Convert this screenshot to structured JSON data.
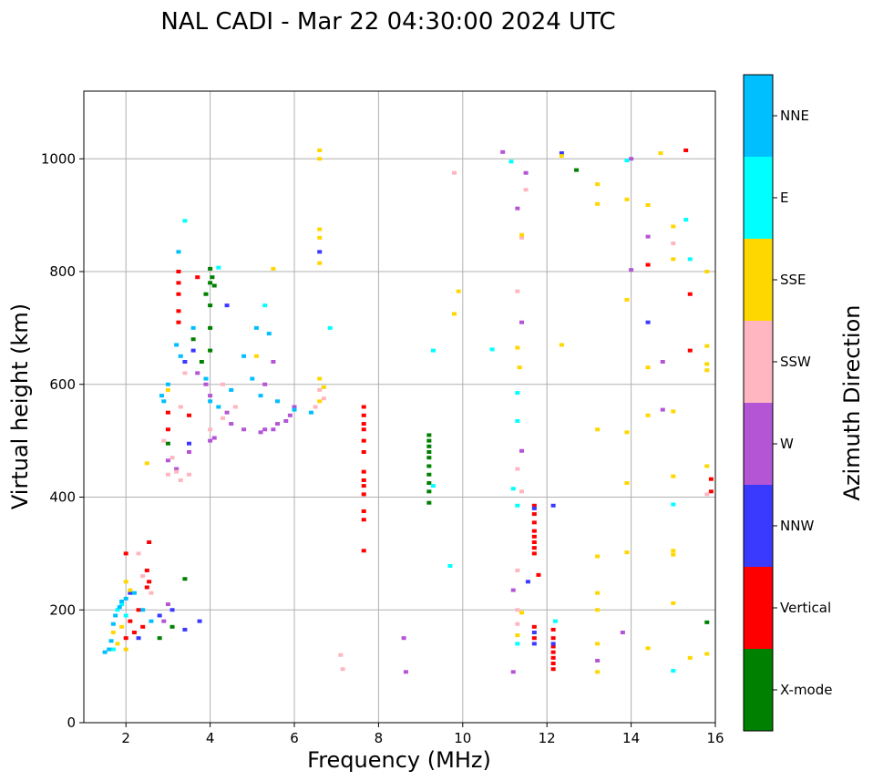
{
  "chart_data": {
    "type": "scatter",
    "title": "NAL CADI - Mar 22 04:30:00 2024 UTC",
    "xlabel": "Frequency (MHz)",
    "ylabel": "Virtual height (km)",
    "xlim": [
      1,
      16
    ],
    "ylim": [
      0,
      1120
    ],
    "x_ticks": [
      2,
      4,
      6,
      8,
      10,
      12,
      14,
      16
    ],
    "y_ticks": [
      0,
      200,
      400,
      600,
      800,
      1000
    ],
    "grid": true,
    "colorbar": {
      "label": "Azimuth Direction",
      "categories": [
        {
          "name": "X-mode",
          "color": "#008000"
        },
        {
          "name": "Vertical",
          "color": "#ff0000"
        },
        {
          "name": "NNW",
          "color": "#3a3aff"
        },
        {
          "name": "W",
          "color": "#b455d6"
        },
        {
          "name": "SSW",
          "color": "#ffb6c1"
        },
        {
          "name": "SSE",
          "color": "#ffd700"
        },
        {
          "name": "E",
          "color": "#00ffff"
        },
        {
          "name": "NNE",
          "color": "#00bfff"
        }
      ]
    },
    "series": [
      {
        "name": "X-mode",
        "color": "#008000",
        "points": [
          [
            9.2,
            390
          ],
          [
            9.2,
            410
          ],
          [
            9.2,
            425
          ],
          [
            9.2,
            440
          ],
          [
            9.2,
            455
          ],
          [
            9.2,
            470
          ],
          [
            9.2,
            480
          ],
          [
            9.2,
            490
          ],
          [
            9.2,
            500
          ],
          [
            9.2,
            510
          ],
          [
            4.0,
            805
          ],
          [
            4.05,
            790
          ],
          [
            4.0,
            780
          ],
          [
            4.1,
            775
          ],
          [
            3.9,
            760
          ],
          [
            4.0,
            740
          ],
          [
            4.0,
            700
          ],
          [
            3.6,
            680
          ],
          [
            4.0,
            660
          ],
          [
            3.8,
            640
          ],
          [
            3.4,
            255
          ],
          [
            2.8,
            150
          ],
          [
            3.1,
            170
          ],
          [
            12.7,
            980
          ],
          [
            15.8,
            178
          ],
          [
            3.0,
            495
          ]
        ]
      },
      {
        "name": "Vertical",
        "color": "#ff0000",
        "points": [
          [
            7.65,
            305
          ],
          [
            7.65,
            360
          ],
          [
            7.65,
            375
          ],
          [
            7.65,
            405
          ],
          [
            7.65,
            420
          ],
          [
            7.65,
            430
          ],
          [
            7.65,
            445
          ],
          [
            7.65,
            480
          ],
          [
            7.65,
            500
          ],
          [
            7.65,
            520
          ],
          [
            7.65,
            530
          ],
          [
            7.65,
            545
          ],
          [
            7.65,
            560
          ],
          [
            11.7,
            300
          ],
          [
            11.7,
            310
          ],
          [
            11.7,
            320
          ],
          [
            11.7,
            330
          ],
          [
            11.7,
            340
          ],
          [
            11.7,
            355
          ],
          [
            11.7,
            370
          ],
          [
            11.7,
            385
          ],
          [
            12.15,
            95
          ],
          [
            12.15,
            105
          ],
          [
            12.15,
            115
          ],
          [
            12.15,
            125
          ],
          [
            12.15,
            135
          ],
          [
            12.15,
            150
          ],
          [
            12.15,
            165
          ],
          [
            11.7,
            150
          ],
          [
            11.7,
            170
          ],
          [
            15.3,
            1015
          ],
          [
            15.4,
            760
          ],
          [
            14.4,
            812
          ],
          [
            15.4,
            660
          ],
          [
            15.9,
            410
          ],
          [
            15.9,
            432
          ],
          [
            11.8,
            262
          ],
          [
            3.25,
            800
          ],
          [
            3.25,
            780
          ],
          [
            3.25,
            760
          ],
          [
            3.25,
            730
          ],
          [
            3.25,
            710
          ],
          [
            3.7,
            790
          ],
          [
            3.0,
            520
          ],
          [
            3.0,
            550
          ],
          [
            3.5,
            545
          ],
          [
            2.0,
            150
          ],
          [
            2.2,
            160
          ],
          [
            2.4,
            170
          ],
          [
            2.1,
            180
          ],
          [
            2.3,
            200
          ],
          [
            2.5,
            240
          ],
          [
            2.55,
            250
          ],
          [
            2.5,
            270
          ],
          [
            2.55,
            320
          ],
          [
            2.0,
            300
          ]
        ]
      },
      {
        "name": "NNW",
        "color": "#3a3aff",
        "points": [
          [
            11.7,
            380
          ],
          [
            11.55,
            250
          ],
          [
            12.15,
            385
          ],
          [
            12.35,
            1010
          ],
          [
            14.4,
            710
          ],
          [
            6.6,
            835
          ],
          [
            4.4,
            740
          ],
          [
            11.7,
            160
          ],
          [
            11.7,
            140
          ],
          [
            12.15,
            140
          ],
          [
            3.1,
            200
          ],
          [
            3.4,
            165
          ],
          [
            3.75,
            180
          ],
          [
            2.8,
            190
          ],
          [
            3.5,
            495
          ],
          [
            3.6,
            660
          ],
          [
            3.4,
            640
          ],
          [
            2.1,
            230
          ],
          [
            2.3,
            150
          ]
        ]
      },
      {
        "name": "W",
        "color": "#b455d6",
        "points": [
          [
            5.5,
            520
          ],
          [
            5.6,
            530
          ],
          [
            5.8,
            535
          ],
          [
            5.9,
            545
          ],
          [
            6.0,
            560
          ],
          [
            5.3,
            520
          ],
          [
            5.2,
            515
          ],
          [
            4.8,
            520
          ],
          [
            4.5,
            530
          ],
          [
            4.4,
            550
          ],
          [
            4.0,
            500
          ],
          [
            4.1,
            505
          ],
          [
            4.0,
            580
          ],
          [
            3.9,
            600
          ],
          [
            3.7,
            620
          ],
          [
            3.5,
            480
          ],
          [
            3.2,
            450
          ],
          [
            3.0,
            465
          ],
          [
            11.4,
            482
          ],
          [
            11.4,
            710
          ],
          [
            11.3,
            912
          ],
          [
            11.5,
            975
          ],
          [
            10.95,
            1012
          ],
          [
            14.0,
            803
          ],
          [
            14.0,
            1000
          ],
          [
            14.4,
            862
          ],
          [
            14.75,
            640
          ],
          [
            14.75,
            555
          ],
          [
            11.2,
            235
          ],
          [
            13.8,
            160
          ],
          [
            13.2,
            110
          ],
          [
            3.0,
            210
          ],
          [
            2.9,
            180
          ],
          [
            8.6,
            150
          ],
          [
            8.65,
            90
          ],
          [
            11.2,
            90
          ],
          [
            5.3,
            600
          ],
          [
            5.5,
            640
          ]
        ]
      },
      {
        "name": "SSW",
        "color": "#ffb6c1",
        "points": [
          [
            3.0,
            440
          ],
          [
            3.2,
            445
          ],
          [
            3.3,
            430
          ],
          [
            3.5,
            440
          ],
          [
            3.1,
            470
          ],
          [
            2.9,
            500
          ],
          [
            4.0,
            520
          ],
          [
            4.3,
            540
          ],
          [
            4.6,
            560
          ],
          [
            4.3,
            600
          ],
          [
            6.6,
            590
          ],
          [
            6.7,
            575
          ],
          [
            6.5,
            560
          ],
          [
            11.3,
            765
          ],
          [
            11.5,
            945
          ],
          [
            11.4,
            860
          ],
          [
            11.3,
            450
          ],
          [
            11.4,
            410
          ],
          [
            11.3,
            270
          ],
          [
            11.3,
            200
          ],
          [
            11.3,
            175
          ],
          [
            15.8,
            405
          ],
          [
            15.0,
            850
          ],
          [
            2.4,
            260
          ],
          [
            2.6,
            230
          ],
          [
            2.3,
            300
          ],
          [
            7.1,
            120
          ],
          [
            7.15,
            95
          ],
          [
            9.8,
            975
          ],
          [
            3.4,
            620
          ],
          [
            3.3,
            560
          ]
        ]
      },
      {
        "name": "SSE",
        "color": "#ffd700",
        "points": [
          [
            6.6,
            1015
          ],
          [
            6.6,
            1000
          ],
          [
            6.6,
            875
          ],
          [
            6.6,
            860
          ],
          [
            6.6,
            815
          ],
          [
            6.6,
            610
          ],
          [
            6.7,
            595
          ],
          [
            6.6,
            570
          ],
          [
            12.35,
            1005
          ],
          [
            13.2,
            955
          ],
          [
            13.2,
            920
          ],
          [
            13.2,
            520
          ],
          [
            13.2,
            295
          ],
          [
            13.2,
            230
          ],
          [
            13.2,
            200
          ],
          [
            13.2,
            140
          ],
          [
            13.2,
            90
          ],
          [
            13.9,
            928
          ],
          [
            13.9,
            750
          ],
          [
            13.9,
            515
          ],
          [
            13.9,
            425
          ],
          [
            13.9,
            302
          ],
          [
            14.4,
            918
          ],
          [
            14.4,
            630
          ],
          [
            14.4,
            545
          ],
          [
            14.4,
            132
          ],
          [
            14.7,
            1010
          ],
          [
            15.0,
            880
          ],
          [
            15.0,
            822
          ],
          [
            15.0,
            552
          ],
          [
            15.0,
            437
          ],
          [
            15.0,
            305
          ],
          [
            15.0,
            298
          ],
          [
            15.0,
            212
          ],
          [
            15.4,
            115
          ],
          [
            15.8,
            800
          ],
          [
            15.8,
            668
          ],
          [
            15.8,
            636
          ],
          [
            15.8,
            625
          ],
          [
            15.8,
            455
          ],
          [
            15.8,
            122
          ],
          [
            12.35,
            670
          ],
          [
            9.9,
            765
          ],
          [
            9.8,
            725
          ],
          [
            11.3,
            665
          ],
          [
            11.35,
            630
          ],
          [
            11.4,
            865
          ],
          [
            11.4,
            195
          ],
          [
            11.3,
            155
          ],
          [
            2.0,
            130
          ],
          [
            1.8,
            140
          ],
          [
            1.7,
            160
          ],
          [
            1.9,
            170
          ],
          [
            2.0,
            250
          ],
          [
            2.1,
            235
          ],
          [
            2.5,
            460
          ],
          [
            5.1,
            650
          ],
          [
            5.5,
            805
          ],
          [
            3.0,
            590
          ]
        ]
      },
      {
        "name": "E",
        "color": "#00ffff",
        "points": [
          [
            15.3,
            892
          ],
          [
            15.4,
            822
          ],
          [
            15.0,
            387
          ],
          [
            15.0,
            92
          ],
          [
            13.9,
            997
          ],
          [
            10.7,
            662
          ],
          [
            9.3,
            660
          ],
          [
            9.7,
            278
          ],
          [
            9.3,
            420
          ],
          [
            11.3,
            585
          ],
          [
            11.3,
            535
          ],
          [
            11.2,
            415
          ],
          [
            11.3,
            385
          ],
          [
            11.3,
            140
          ],
          [
            11.15,
            995
          ],
          [
            6.85,
            700
          ],
          [
            4.2,
            807
          ],
          [
            5.3,
            740
          ],
          [
            1.7,
            130
          ],
          [
            1.8,
            200
          ],
          [
            1.9,
            210
          ],
          [
            2.0,
            190
          ],
          [
            3.4,
            890
          ],
          [
            12.2,
            180
          ]
        ]
      },
      {
        "name": "NNE",
        "color": "#00bfff",
        "points": [
          [
            1.5,
            125
          ],
          [
            1.6,
            130
          ],
          [
            1.65,
            145
          ],
          [
            1.7,
            175
          ],
          [
            1.75,
            190
          ],
          [
            1.85,
            205
          ],
          [
            1.9,
            215
          ],
          [
            2.0,
            220
          ],
          [
            2.2,
            230
          ],
          [
            2.85,
            580
          ],
          [
            2.9,
            570
          ],
          [
            3.0,
            600
          ],
          [
            3.2,
            670
          ],
          [
            3.3,
            650
          ],
          [
            3.6,
            700
          ],
          [
            3.9,
            610
          ],
          [
            4.0,
            570
          ],
          [
            4.2,
            560
          ],
          [
            4.5,
            590
          ],
          [
            5.0,
            610
          ],
          [
            5.2,
            580
          ],
          [
            5.6,
            570
          ],
          [
            6.0,
            555
          ],
          [
            6.4,
            550
          ],
          [
            3.25,
            835
          ],
          [
            5.4,
            690
          ],
          [
            5.1,
            700
          ],
          [
            4.8,
            650
          ],
          [
            2.4,
            200
          ],
          [
            2.6,
            180
          ]
        ]
      }
    ]
  }
}
